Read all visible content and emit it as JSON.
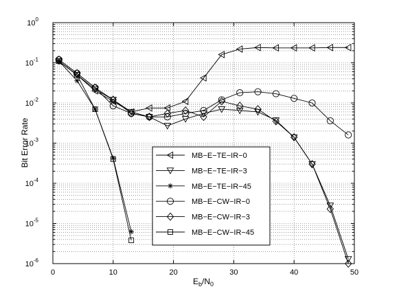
{
  "chart_data": {
    "type": "line",
    "title": "",
    "xlabel": {
      "base": "E",
      "sub1": "b",
      "mid": "/N",
      "sub2": "0"
    },
    "ylabel": "Bit Error Rate",
    "xlim": [
      0,
      50
    ],
    "ylim": [
      1e-06,
      1
    ],
    "yscale": "log",
    "grid": true,
    "legend_position": "center",
    "x_ticks": [
      0,
      10,
      20,
      30,
      40,
      50
    ],
    "x_tick_labels": [
      "0",
      "10",
      "20",
      "30",
      "40",
      "50"
    ],
    "y_ticks": [
      {
        "value": 1e-06,
        "base": "10",
        "exp": "-6"
      },
      {
        "value": 1e-05,
        "base": "10",
        "exp": "-5"
      },
      {
        "value": 0.0001,
        "base": "10",
        "exp": "-4"
      },
      {
        "value": 0.001,
        "base": "10",
        "exp": "-3"
      },
      {
        "value": 0.01,
        "base": "10",
        "exp": "-2"
      },
      {
        "value": 0.1,
        "base": "10",
        "exp": "-1"
      },
      {
        "value": 1,
        "base": "10",
        "exp": "0"
      }
    ],
    "series": [
      {
        "name": "MB−E−TE−IR−0",
        "marker": "triangle-left",
        "x": [
          1,
          4,
          7,
          10,
          13,
          16,
          19,
          22,
          25,
          28,
          31,
          34,
          37,
          40,
          43,
          46,
          49
        ],
        "y": [
          0.11,
          0.05,
          0.02,
          0.011,
          0.006,
          0.0075,
          0.0075,
          0.011,
          0.042,
          0.16,
          0.22,
          0.24,
          0.235,
          0.235,
          0.235,
          0.24,
          0.24
        ]
      },
      {
        "name": "MB−E−TE−IR−3",
        "marker": "triangle-down",
        "x": [
          1,
          4,
          7,
          10,
          13,
          16,
          19,
          22,
          25,
          28,
          31,
          34,
          37,
          40,
          43,
          46,
          49
        ],
        "y": [
          0.11,
          0.05,
          0.022,
          0.012,
          0.006,
          0.0045,
          0.0027,
          0.004,
          0.0055,
          0.007,
          0.0065,
          0.006,
          0.0037,
          0.0014,
          0.0003,
          2.8e-05,
          1.3e-06
        ]
      },
      {
        "name": "MB−E−TE−IR−45",
        "marker": "star",
        "x": [
          1,
          4,
          7,
          10,
          13
        ],
        "y": [
          0.11,
          0.036,
          0.007,
          0.00042,
          6.2e-06
        ]
      },
      {
        "name": "MB−E−CW−IR−0",
        "marker": "circle",
        "x": [
          1,
          4,
          7,
          10,
          13,
          16,
          19,
          22,
          25,
          28,
          31,
          34,
          37,
          40,
          43,
          46,
          49
        ],
        "y": [
          0.12,
          0.055,
          0.024,
          0.0085,
          0.0055,
          0.0045,
          0.0045,
          0.0055,
          0.0065,
          0.012,
          0.018,
          0.019,
          0.017,
          0.013,
          0.01,
          0.0036,
          0.0016
        ]
      },
      {
        "name": "MB−E−CW−IR−3",
        "marker": "diamond",
        "x": [
          1,
          4,
          7,
          10,
          13,
          16,
          19,
          22,
          25,
          28,
          31,
          34,
          37,
          40,
          43,
          46,
          49
        ],
        "y": [
          0.12,
          0.055,
          0.024,
          0.012,
          0.0055,
          0.0045,
          0.0055,
          0.0065,
          0.0045,
          0.011,
          0.0085,
          0.007,
          0.0035,
          0.0014,
          0.0003,
          2.3e-05,
          1e-06
        ]
      },
      {
        "name": "MB−E−CW−IR−45",
        "marker": "square",
        "x": [
          1,
          4,
          7,
          10,
          13
        ],
        "y": [
          0.11,
          0.05,
          0.007,
          0.0004,
          3.8e-06
        ]
      }
    ]
  }
}
